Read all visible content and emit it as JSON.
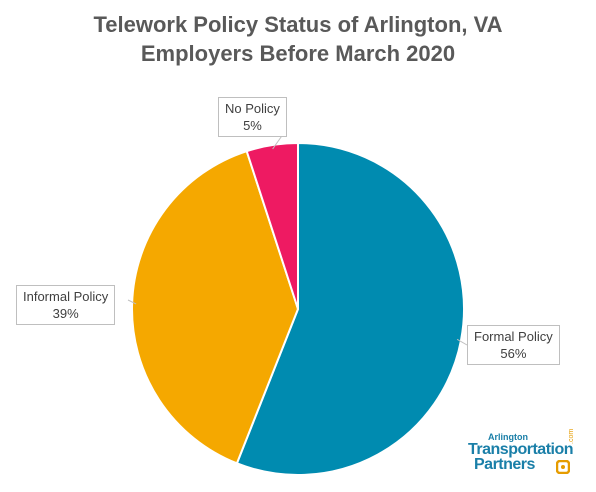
{
  "chart_data": {
    "type": "pie",
    "title": [
      "Telework Policy Status of Arlington, VA",
      "Employers Before March 2020"
    ],
    "slices": [
      {
        "label": "Formal Policy",
        "value": 56,
        "value_label": "56%",
        "color": "#008bb0"
      },
      {
        "label": "Informal Policy",
        "value": 39,
        "value_label": "39%",
        "color": "#f5a800"
      },
      {
        "label": "No Policy",
        "value": 5,
        "value_label": "5%",
        "color": "#ee1a62"
      }
    ],
    "start_angle_deg": 0,
    "direction": "clockwise",
    "legend": "none",
    "data_labels": "callouts"
  },
  "logo": {
    "line1": "Arlington",
    "line2": "Transportation",
    "line3": "Partners",
    "suffix": ".com",
    "accent_color": "#e69c00",
    "brand_color": "#1a7fa8"
  }
}
